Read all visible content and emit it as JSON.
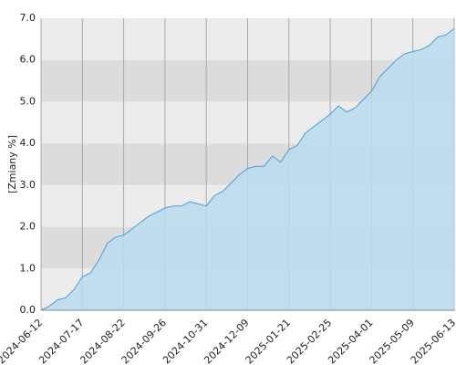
{
  "chart_data": {
    "type": "area",
    "y_label": "[Zmiany %]",
    "categories": [
      "2024-06-12",
      null,
      null,
      null,
      null,
      "2024-07-17",
      null,
      null,
      null,
      null,
      "2024-08-22",
      null,
      null,
      null,
      null,
      "2024-09-26",
      null,
      null,
      null,
      null,
      "2024-10-31",
      null,
      null,
      null,
      null,
      "2024-12-09",
      null,
      null,
      null,
      null,
      "2025-01-21",
      null,
      null,
      null,
      null,
      "2025-02-25",
      null,
      null,
      null,
      null,
      "2025-04-01",
      null,
      null,
      null,
      null,
      "2025-05-09",
      null,
      null,
      null,
      null,
      "2025-06-13"
    ],
    "values": [
      0.0,
      0.1,
      0.25,
      0.3,
      0.5,
      0.8,
      0.9,
      1.2,
      1.6,
      1.75,
      1.8,
      1.95,
      2.1,
      2.25,
      2.35,
      2.45,
      2.5,
      2.5,
      2.6,
      2.55,
      2.5,
      2.75,
      2.85,
      3.05,
      3.25,
      3.4,
      3.45,
      3.45,
      3.7,
      3.55,
      3.85,
      3.95,
      4.25,
      4.4,
      4.55,
      4.7,
      4.9,
      4.75,
      4.85,
      5.05,
      5.25,
      5.6,
      5.8,
      6.0,
      6.15,
      6.2,
      6.25,
      6.35,
      6.55,
      6.6,
      6.75
    ],
    "color": "#4a9be0",
    "fill_color": "#b9dced",
    "band_colors": [
      "#ececec",
      "#dcdcdc"
    ],
    "ylim": [
      0,
      7
    ],
    "yticks": [
      {
        "value": 0,
        "label": "0.0"
      },
      {
        "value": 1,
        "label": "1.0"
      },
      {
        "value": 2,
        "label": "2.0"
      },
      {
        "value": 3,
        "label": "3.0"
      },
      {
        "value": 4,
        "label": "4.0"
      },
      {
        "value": 5,
        "label": "5.0"
      },
      {
        "value": 6,
        "label": "6.0"
      },
      {
        "value": 7,
        "label": "7.0"
      }
    ],
    "grid": true
  }
}
